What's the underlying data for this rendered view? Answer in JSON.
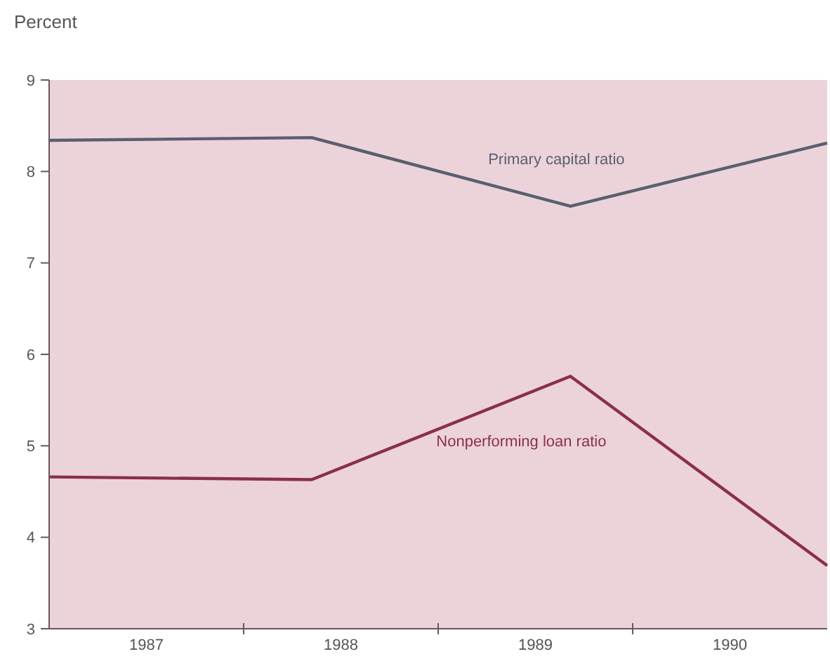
{
  "chart_data": {
    "type": "line",
    "ylabel": "Percent",
    "xlim": [
      1987,
      1991
    ],
    "xticks": [
      {
        "value": 1987.5,
        "label": "1987"
      },
      {
        "value": 1988,
        "label": null
      },
      {
        "value": 1988.5,
        "label": "1988"
      },
      {
        "value": 1989,
        "label": null
      },
      {
        "value": 1989.5,
        "label": "1989"
      },
      {
        "value": 1990,
        "label": null
      },
      {
        "value": 1990.5,
        "label": "1990"
      }
    ],
    "ylim": [
      3,
      9
    ],
    "yticks": [
      3,
      4,
      5,
      6,
      7,
      8,
      9
    ],
    "grid": false,
    "marker": "none",
    "line_style": "solid",
    "series": [
      {
        "name": "Primary capital ratio",
        "color": "#5a5f6e",
        "x": [
          1987,
          1988.35,
          1989.68,
          1991
        ],
        "values": [
          8.34,
          8.37,
          7.62,
          8.31
        ]
      },
      {
        "name": "Nonperforming loan ratio",
        "color": "#8a3048",
        "x": [
          1987,
          1988.35,
          1989.68,
          1991
        ],
        "values": [
          4.66,
          4.63,
          5.76,
          3.69
        ]
      }
    ]
  }
}
